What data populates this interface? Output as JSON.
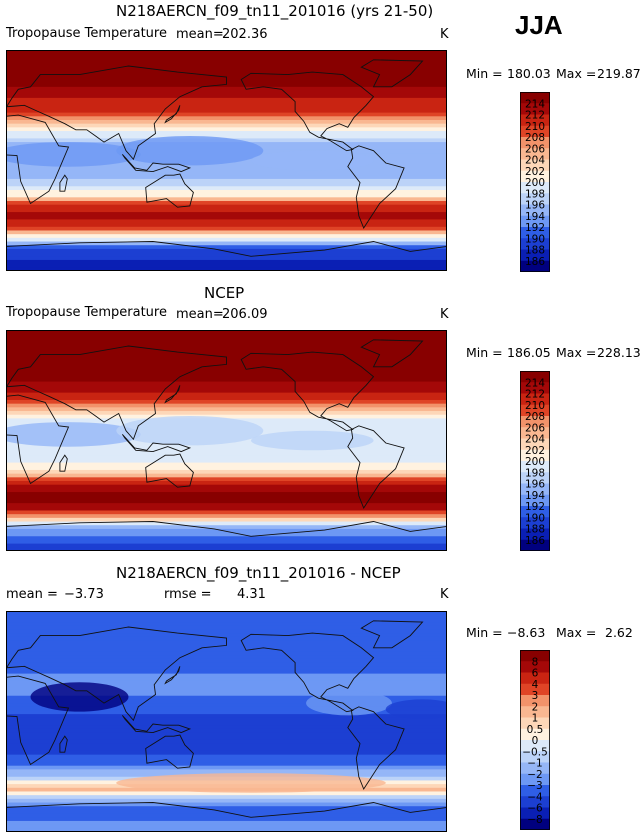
{
  "season": "JJA",
  "colors": {
    "temp_scale": [
      "#00007f",
      "#0a1fb4",
      "#1c3fd2",
      "#2f5ee6",
      "#4a7cf0",
      "#6d98f4",
      "#95b6f7",
      "#bcd3f8",
      "#ddeaf9",
      "#fff2e0",
      "#fdd7b8",
      "#f9b791",
      "#f2926a",
      "#ea6a44",
      "#df4426",
      "#c92412",
      "#a40808",
      "#880000"
    ],
    "coastline": "#111111"
  },
  "chart_data": [
    {
      "type": "heatmap",
      "title": "N218AERCN_f09_tn11_201016 (yrs 21-50)",
      "variable": "Tropopause Temperature",
      "mean_label": "mean=",
      "mean": "202.36",
      "units": "K",
      "min_label": "Min =",
      "min": "180.03",
      "max_label": "Max =",
      "max": "219.87",
      "colorbar_levels": [
        "214",
        "212",
        "210",
        "208",
        "206",
        "204",
        "202",
        "200",
        "198",
        "196",
        "194",
        "192",
        "190",
        "188",
        "186"
      ],
      "lat_profile": [
        186,
        190,
        200,
        209,
        213,
        209,
        201,
        196,
        195,
        196,
        201,
        210,
        214,
        215
      ],
      "profile_lat": [
        -90,
        -72,
        -63,
        -55,
        -45,
        -35,
        -28,
        -15,
        0,
        15,
        25,
        40,
        60,
        90
      ]
    },
    {
      "type": "heatmap",
      "title": "NCEP",
      "variable": "Tropopause Temperature",
      "mean_label": "mean=",
      "mean": "206.09",
      "units": "K",
      "min_label": "Min =",
      "min": "186.05",
      "max_label": "Max =",
      "max": "228.13",
      "colorbar_levels": [
        "214",
        "212",
        "210",
        "208",
        "206",
        "204",
        "202",
        "200",
        "198",
        "196",
        "194",
        "192",
        "190",
        "188",
        "186"
      ],
      "lat_profile": [
        188,
        194,
        205,
        213,
        215,
        212,
        204,
        199,
        198,
        199,
        205,
        213,
        216,
        216
      ],
      "profile_lat": [
        -90,
        -72,
        -63,
        -55,
        -45,
        -35,
        -28,
        -15,
        0,
        15,
        25,
        40,
        60,
        90
      ]
    },
    {
      "type": "heatmap",
      "title": "N218AERCN_f09_tn11_201016 - NCEP",
      "mean_label": "mean =",
      "mean": "−3.73",
      "rmse_label": "rmse =",
      "rmse": "4.31",
      "units": "K",
      "min_label": "Min =",
      "min": "−8.63",
      "max_label": "Max =",
      "max": "2.62",
      "colorbar_levels": [
        "8",
        "6",
        "4",
        "3",
        "2",
        "1",
        "0.5",
        "0",
        "−0.5",
        "−1",
        "−2",
        "−3",
        "−4",
        "−6",
        "−8"
      ],
      "lat_profile": [
        -2,
        -4,
        -1,
        1.5,
        -1,
        -3,
        -4,
        -5,
        -4.5,
        -3.5,
        -2.5,
        -3,
        -3.5,
        -3
      ],
      "profile_lat": [
        -90,
        -72,
        -63,
        -55,
        -45,
        -35,
        -28,
        -15,
        0,
        15,
        25,
        40,
        60,
        90
      ]
    }
  ]
}
